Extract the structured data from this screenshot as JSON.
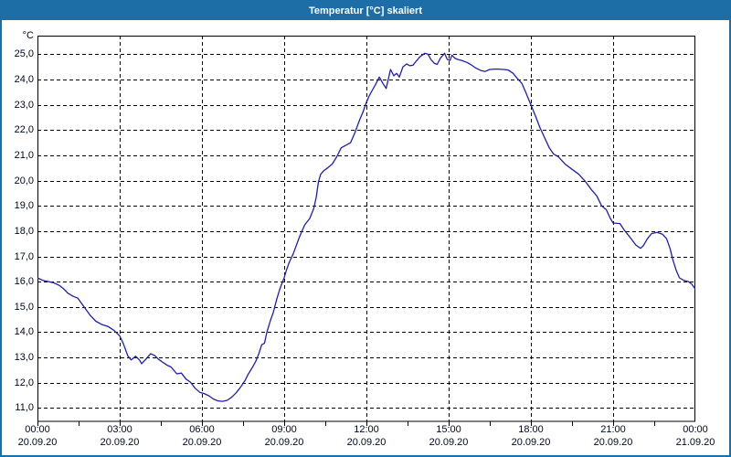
{
  "window": {
    "title": "Temperatur [°C] skaliert",
    "titlebar_color": "#1d6da6",
    "border_color": "#1d6da6",
    "background": "#ffffff"
  },
  "chart_data": {
    "type": "line",
    "title": "Temperatur [°C] skaliert",
    "grid": {
      "style": "dashed",
      "color": "#000000"
    },
    "legend": "none",
    "x_axis": {
      "range_hours": [
        0,
        24
      ],
      "major_tick_interval_hours": 3,
      "minor_tick_interval_hours": 1.5,
      "ticks": [
        {
          "hour": 0,
          "time": "00:00",
          "date": "20.09.20"
        },
        {
          "hour": 3,
          "time": "03:00",
          "date": "20.09.20"
        },
        {
          "hour": 6,
          "time": "06:00",
          "date": "20.09.20"
        },
        {
          "hour": 9,
          "time": "09:00",
          "date": "20.09.20"
        },
        {
          "hour": 12,
          "time": "12:00",
          "date": "20.09.20"
        },
        {
          "hour": 15,
          "time": "15:00",
          "date": "20.09.20"
        },
        {
          "hour": 18,
          "time": "18:00",
          "date": "20.09.20"
        },
        {
          "hour": 21,
          "time": "21:00",
          "date": "20.09.20"
        },
        {
          "hour": 24,
          "time": "00:00",
          "date": "21.09.20"
        }
      ]
    },
    "y_axis": {
      "unit_label": "°C",
      "range": [
        10.45,
        25.74
      ],
      "ticks": [
        {
          "value": 25,
          "label": "25,0"
        },
        {
          "value": 24,
          "label": "24,0"
        },
        {
          "value": 23,
          "label": "23,0"
        },
        {
          "value": 22,
          "label": "22,0"
        },
        {
          "value": 21,
          "label": "21,0"
        },
        {
          "value": 20,
          "label": "20,0"
        },
        {
          "value": 19,
          "label": "19,0"
        },
        {
          "value": 18,
          "label": "18,0"
        },
        {
          "value": 17,
          "label": "17,0"
        },
        {
          "value": 16,
          "label": "16,0"
        },
        {
          "value": 15,
          "label": "15,0"
        },
        {
          "value": 14,
          "label": "14,0"
        },
        {
          "value": 13,
          "label": "13,0"
        },
        {
          "value": 12,
          "label": "12,0"
        },
        {
          "value": 11,
          "label": "11,0"
        }
      ]
    },
    "series": [
      {
        "name": "Temperatur",
        "color": "#1e1eb4",
        "points": [
          [
            0.0,
            16.15
          ],
          [
            0.2,
            16.05
          ],
          [
            0.4,
            16.0
          ],
          [
            0.6,
            15.95
          ],
          [
            0.8,
            15.85
          ],
          [
            0.97,
            15.7
          ],
          [
            1.1,
            15.55
          ],
          [
            1.3,
            15.42
          ],
          [
            1.47,
            15.35
          ],
          [
            1.6,
            15.15
          ],
          [
            1.7,
            15.0
          ],
          [
            1.92,
            14.67
          ],
          [
            2.13,
            14.43
          ],
          [
            2.35,
            14.3
          ],
          [
            2.58,
            14.22
          ],
          [
            2.8,
            14.06
          ],
          [
            3.0,
            13.85
          ],
          [
            3.13,
            13.55
          ],
          [
            3.3,
            13.05
          ],
          [
            3.42,
            12.9
          ],
          [
            3.58,
            13.05
          ],
          [
            3.72,
            12.9
          ],
          [
            3.8,
            12.75
          ],
          [
            3.97,
            12.95
          ],
          [
            4.13,
            13.15
          ],
          [
            4.28,
            13.07
          ],
          [
            4.42,
            12.92
          ],
          [
            4.58,
            12.8
          ],
          [
            4.75,
            12.68
          ],
          [
            4.87,
            12.62
          ],
          [
            4.97,
            12.5
          ],
          [
            5.08,
            12.35
          ],
          [
            5.25,
            12.38
          ],
          [
            5.42,
            12.14
          ],
          [
            5.58,
            12.02
          ],
          [
            5.75,
            11.78
          ],
          [
            5.92,
            11.62
          ],
          [
            6.08,
            11.57
          ],
          [
            6.25,
            11.48
          ],
          [
            6.42,
            11.35
          ],
          [
            6.58,
            11.28
          ],
          [
            6.75,
            11.26
          ],
          [
            6.92,
            11.3
          ],
          [
            7.08,
            11.42
          ],
          [
            7.25,
            11.6
          ],
          [
            7.42,
            11.84
          ],
          [
            7.58,
            12.1
          ],
          [
            7.68,
            12.32
          ],
          [
            7.85,
            12.62
          ],
          [
            7.97,
            12.86
          ],
          [
            8.08,
            13.16
          ],
          [
            8.18,
            13.5
          ],
          [
            8.28,
            13.56
          ],
          [
            8.37,
            14.0
          ],
          [
            8.5,
            14.47
          ],
          [
            8.6,
            14.77
          ],
          [
            8.73,
            15.31
          ],
          [
            8.83,
            15.67
          ],
          [
            8.93,
            15.97
          ],
          [
            9.0,
            16.15
          ],
          [
            9.08,
            16.45
          ],
          [
            9.18,
            16.75
          ],
          [
            9.33,
            17.1
          ],
          [
            9.55,
            17.75
          ],
          [
            9.75,
            18.25
          ],
          [
            9.93,
            18.5
          ],
          [
            10.08,
            18.9
          ],
          [
            10.17,
            19.35
          ],
          [
            10.25,
            19.95
          ],
          [
            10.33,
            20.25
          ],
          [
            10.45,
            20.4
          ],
          [
            10.58,
            20.5
          ],
          [
            10.75,
            20.65
          ],
          [
            10.92,
            20.95
          ],
          [
            11.08,
            21.3
          ],
          [
            11.25,
            21.4
          ],
          [
            11.42,
            21.5
          ],
          [
            11.58,
            21.9
          ],
          [
            11.75,
            22.4
          ],
          [
            11.87,
            22.7
          ],
          [
            12.0,
            23.1
          ],
          [
            12.1,
            23.35
          ],
          [
            12.2,
            23.55
          ],
          [
            12.33,
            23.8
          ],
          [
            12.47,
            24.1
          ],
          [
            12.6,
            23.85
          ],
          [
            12.72,
            23.65
          ],
          [
            12.88,
            24.4
          ],
          [
            13.0,
            24.15
          ],
          [
            13.1,
            24.25
          ],
          [
            13.2,
            24.1
          ],
          [
            13.33,
            24.5
          ],
          [
            13.47,
            24.62
          ],
          [
            13.58,
            24.55
          ],
          [
            13.7,
            24.57
          ],
          [
            13.83,
            24.75
          ],
          [
            13.95,
            24.9
          ],
          [
            14.13,
            25.04
          ],
          [
            14.25,
            25.0
          ],
          [
            14.35,
            24.8
          ],
          [
            14.47,
            24.65
          ],
          [
            14.58,
            24.6
          ],
          [
            14.7,
            24.85
          ],
          [
            14.85,
            25.04
          ],
          [
            14.95,
            24.8
          ],
          [
            15.05,
            24.76
          ],
          [
            15.12,
            24.97
          ],
          [
            15.22,
            24.85
          ],
          [
            15.33,
            24.8
          ],
          [
            15.5,
            24.75
          ],
          [
            15.67,
            24.68
          ],
          [
            15.83,
            24.58
          ],
          [
            16.0,
            24.45
          ],
          [
            16.17,
            24.36
          ],
          [
            16.33,
            24.32
          ],
          [
            16.5,
            24.4
          ],
          [
            16.75,
            24.42
          ],
          [
            17.0,
            24.4
          ],
          [
            17.17,
            24.38
          ],
          [
            17.35,
            24.25
          ],
          [
            17.5,
            24.05
          ],
          [
            17.67,
            23.85
          ],
          [
            17.83,
            23.45
          ],
          [
            18.0,
            23.0
          ],
          [
            18.17,
            22.55
          ],
          [
            18.33,
            22.1
          ],
          [
            18.5,
            21.7
          ],
          [
            18.67,
            21.3
          ],
          [
            18.83,
            21.05
          ],
          [
            19.0,
            20.95
          ],
          [
            19.25,
            20.65
          ],
          [
            19.5,
            20.45
          ],
          [
            19.75,
            20.25
          ],
          [
            20.0,
            19.95
          ],
          [
            20.2,
            19.65
          ],
          [
            20.4,
            19.4
          ],
          [
            20.58,
            19.0
          ],
          [
            20.75,
            18.85
          ],
          [
            20.9,
            18.5
          ],
          [
            21.0,
            18.32
          ],
          [
            21.25,
            18.3
          ],
          [
            21.4,
            18.05
          ],
          [
            21.6,
            17.78
          ],
          [
            21.83,
            17.45
          ],
          [
            22.0,
            17.32
          ],
          [
            22.1,
            17.42
          ],
          [
            22.25,
            17.7
          ],
          [
            22.4,
            17.9
          ],
          [
            22.6,
            17.95
          ],
          [
            22.8,
            17.88
          ],
          [
            22.95,
            17.7
          ],
          [
            23.08,
            17.3
          ],
          [
            23.17,
            16.9
          ],
          [
            23.3,
            16.45
          ],
          [
            23.42,
            16.15
          ],
          [
            23.58,
            16.05
          ],
          [
            23.75,
            16.0
          ],
          [
            23.87,
            15.9
          ],
          [
            24.0,
            15.7
          ]
        ]
      }
    ]
  }
}
